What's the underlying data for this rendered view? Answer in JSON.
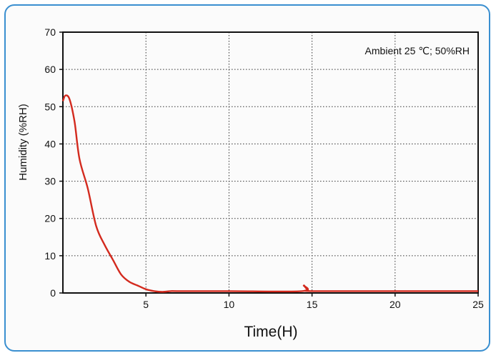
{
  "chart_data": {
    "type": "line",
    "title": "",
    "xlabel": "Time(H)",
    "ylabel": "Humidity (%RH)",
    "annotation": "Ambient 25 ℃;  50%RH",
    "xlim": [
      0,
      25
    ],
    "ylim": [
      0,
      70
    ],
    "xticks": [
      5,
      10,
      15,
      20,
      25
    ],
    "yticks": [
      0,
      10,
      20,
      30,
      40,
      50,
      60,
      70
    ],
    "grid": true,
    "line_color": "#d32a1e",
    "series": [
      {
        "x": [
          0,
          0.15,
          0.4,
          0.7,
          1.0,
          1.5,
          2.0,
          2.5,
          3.0,
          3.5,
          4.0,
          4.5,
          5.0,
          5.5,
          6.0,
          6.5,
          7.0,
          10.0,
          14.4,
          14.5,
          14.6,
          14.75,
          15.0,
          20.0,
          25.0
        ],
        "y": [
          51.5,
          53,
          52,
          46,
          36,
          28,
          18,
          13,
          9,
          5,
          3,
          2,
          1,
          0.5,
          0.3,
          0.5,
          0.5,
          0.5,
          0.5,
          2,
          1.5,
          0.8,
          0.5,
          0.5,
          0.5
        ]
      }
    ]
  }
}
